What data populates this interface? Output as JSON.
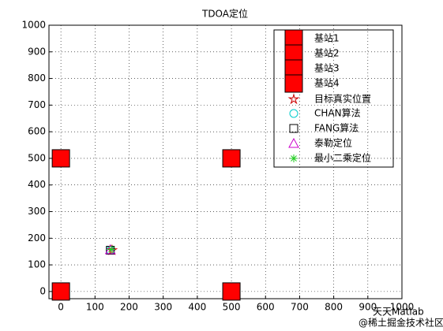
{
  "chart_data": {
    "type": "scatter",
    "title": "TDOA定位",
    "xlim": [
      -35,
      1000
    ],
    "ylim": [
      -27,
      1000
    ],
    "xticks": [
      0,
      100,
      200,
      300,
      400,
      500,
      600,
      700,
      800,
      900,
      1000
    ],
    "yticks": [
      0,
      100,
      200,
      300,
      400,
      500,
      600,
      700,
      800,
      900,
      1000
    ],
    "grid": true,
    "legend_position": "northeast",
    "series": [
      {
        "name": "基站1",
        "marker": "square",
        "size": "large",
        "color": "#000000",
        "fill": "#ff0000",
        "x": [
          0
        ],
        "y": [
          0
        ]
      },
      {
        "name": "基站2",
        "marker": "square",
        "size": "large",
        "color": "#000000",
        "fill": "#ff0000",
        "x": [
          500
        ],
        "y": [
          0
        ]
      },
      {
        "name": "基站3",
        "marker": "square",
        "size": "large",
        "color": "#000000",
        "fill": "#ff0000",
        "x": [
          500
        ],
        "y": [
          500
        ]
      },
      {
        "name": "基站4",
        "marker": "square",
        "size": "large",
        "color": "#000000",
        "fill": "#ff0000",
        "x": [
          0
        ],
        "y": [
          500
        ]
      },
      {
        "name": "目标真实位置",
        "marker": "pentagram",
        "size": "small",
        "color": "#cc0000",
        "x": [
          150
        ],
        "y": [
          155
        ]
      },
      {
        "name": "CHAN算法",
        "marker": "circle",
        "size": "small",
        "color": "#00cccc",
        "x": [
          145
        ],
        "y": [
          155
        ]
      },
      {
        "name": "FANG算法",
        "marker": "square",
        "size": "small",
        "color": "#000000",
        "x": [
          145
        ],
        "y": [
          155
        ]
      },
      {
        "name": "泰勒定位",
        "marker": "triangle",
        "size": "small",
        "color": "#cc00cc",
        "x": [
          145
        ],
        "y": [
          157
        ]
      },
      {
        "name": "最小二乘定位",
        "marker": "asterisk",
        "size": "small",
        "color": "#22cc22",
        "x": [
          148
        ],
        "y": [
          158
        ]
      }
    ]
  },
  "watermark": {
    "brand": "天天Matlab",
    "source": "@稀土掘金技术社区"
  }
}
